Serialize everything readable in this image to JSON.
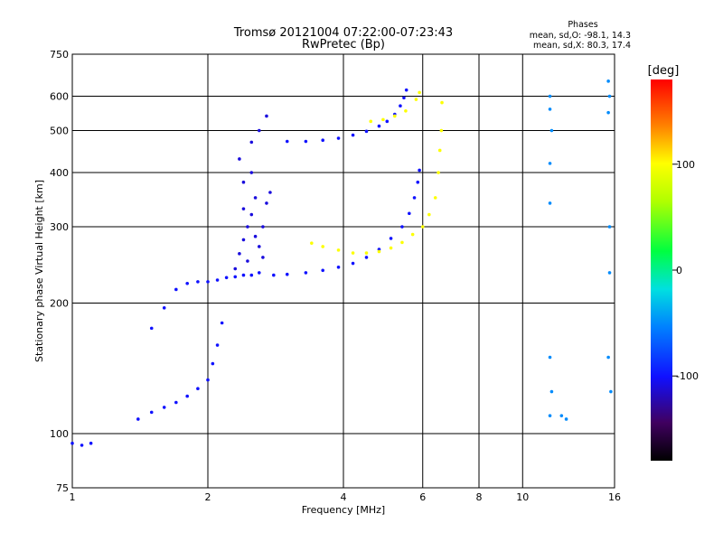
{
  "chart_data": {
    "type": "scatter",
    "title": "Tromsø 20121004 07:22:00-07:23:43",
    "subtitle": "RwPretec (Bp)",
    "xlabel": "Frequency [MHz]",
    "ylabel": "Stationary phase Virtual Height [km]",
    "x_scale": "log",
    "y_scale": "log",
    "xlim": [
      1,
      16
    ],
    "ylim": [
      75,
      750
    ],
    "x_ticks": [
      1,
      2,
      4,
      6,
      8,
      10,
      16
    ],
    "x_tick_labels": [
      "1",
      "2",
      "4",
      "6",
      "8",
      "10",
      "16"
    ],
    "y_ticks": [
      75,
      100,
      200,
      300,
      400,
      500,
      600,
      750
    ],
    "y_tick_labels": [
      "75",
      "100",
      "200",
      "300",
      "400",
      "500",
      "600",
      "750"
    ],
    "x_gridlines": [
      2,
      4,
      6,
      8,
      10
    ],
    "y_gridlines": [
      100,
      200,
      300,
      400,
      500,
      600
    ],
    "grid": true,
    "stats": {
      "heading": "Phases",
      "line1": "mean, sd,O: -98.1, 14.3",
      "line2": "mean, sd,X:  80.3, 17.4"
    },
    "colorbar": {
      "unit": "[deg]",
      "min": -180,
      "max": 180,
      "ticks": [
        100,
        0,
        -100
      ],
      "tick_labels": [
        "100",
        "0",
        "-100"
      ]
    },
    "traces": [
      {
        "name": "o-F-trace",
        "phase": -100,
        "points": [
          [
            2.6,
            235
          ],
          [
            2.8,
            232
          ],
          [
            3.0,
            233
          ],
          [
            3.3,
            235
          ],
          [
            3.6,
            238
          ],
          [
            3.9,
            242
          ],
          [
            4.2,
            247
          ],
          [
            4.5,
            255
          ],
          [
            4.8,
            266
          ],
          [
            5.1,
            282
          ],
          [
            5.4,
            300
          ],
          [
            5.6,
            322
          ],
          [
            5.75,
            350
          ],
          [
            5.85,
            380
          ],
          [
            5.9,
            405
          ]
        ]
      },
      {
        "name": "o-F2-trace",
        "phase": -100,
        "points": [
          [
            3.0,
            472
          ],
          [
            3.3,
            472
          ],
          [
            3.6,
            475
          ],
          [
            3.9,
            480
          ],
          [
            4.2,
            488
          ],
          [
            4.5,
            498
          ],
          [
            4.8,
            512
          ],
          [
            5.0,
            525
          ],
          [
            5.2,
            545
          ],
          [
            5.35,
            570
          ],
          [
            5.45,
            595
          ],
          [
            5.52,
            620
          ]
        ]
      },
      {
        "name": "x-F-trace",
        "phase": 100,
        "points": [
          [
            3.4,
            275
          ],
          [
            3.6,
            270
          ],
          [
            3.9,
            265
          ],
          [
            4.2,
            261
          ],
          [
            4.5,
            261
          ],
          [
            4.8,
            263
          ],
          [
            5.1,
            268
          ],
          [
            5.4,
            276
          ],
          [
            5.7,
            288
          ],
          [
            6.0,
            300
          ],
          [
            6.2,
            320
          ],
          [
            6.4,
            350
          ],
          [
            6.5,
            400
          ],
          [
            6.55,
            450
          ],
          [
            6.6,
            500
          ],
          [
            6.62,
            580
          ]
        ]
      },
      {
        "name": "x-F2-trace",
        "phase": 100,
        "points": [
          [
            4.6,
            525
          ],
          [
            4.9,
            530
          ],
          [
            5.2,
            540
          ],
          [
            5.5,
            555
          ],
          [
            5.8,
            590
          ],
          [
            5.9,
            612
          ]
        ]
      },
      {
        "name": "low-trace",
        "phase": -100,
        "points": [
          [
            1.0,
            95
          ],
          [
            1.05,
            94
          ],
          [
            1.1,
            95
          ],
          [
            1.4,
            108
          ],
          [
            1.5,
            112
          ],
          [
            1.6,
            115
          ],
          [
            1.7,
            118
          ],
          [
            1.8,
            122
          ],
          [
            1.9,
            127
          ],
          [
            2.0,
            133
          ],
          [
            2.05,
            145
          ],
          [
            2.1,
            160
          ],
          [
            2.15,
            180
          ]
        ]
      },
      {
        "name": "E-layer-trace",
        "phase": -100,
        "points": [
          [
            1.5,
            175
          ],
          [
            1.6,
            195
          ],
          [
            1.7,
            215
          ],
          [
            1.8,
            222
          ],
          [
            1.9,
            224
          ],
          [
            2.0,
            224
          ],
          [
            2.1,
            226
          ],
          [
            2.2,
            229
          ],
          [
            2.3,
            230
          ],
          [
            2.4,
            232
          ],
          [
            2.5,
            232
          ]
        ]
      },
      {
        "name": "spread-cluster",
        "phase": -110,
        "points": [
          [
            2.3,
            240
          ],
          [
            2.35,
            260
          ],
          [
            2.4,
            280
          ],
          [
            2.45,
            300
          ],
          [
            2.5,
            320
          ],
          [
            2.55,
            350
          ],
          [
            2.4,
            380
          ],
          [
            2.5,
            400
          ],
          [
            2.35,
            430
          ],
          [
            2.6,
            270
          ],
          [
            2.65,
            300
          ],
          [
            2.7,
            340
          ],
          [
            2.75,
            360
          ],
          [
            2.45,
            250
          ],
          [
            2.55,
            285
          ],
          [
            2.65,
            255
          ],
          [
            2.4,
            330
          ],
          [
            2.5,
            470
          ],
          [
            2.6,
            500
          ],
          [
            2.7,
            540
          ]
        ]
      },
      {
        "name": "right-edge-points",
        "phase": -50,
        "points": [
          [
            11.5,
            600
          ],
          [
            11.5,
            560
          ],
          [
            11.6,
            500
          ],
          [
            11.5,
            420
          ],
          [
            11.5,
            340
          ],
          [
            11.5,
            150
          ],
          [
            11.6,
            125
          ],
          [
            11.5,
            110
          ],
          [
            12.2,
            110
          ],
          [
            12.5,
            108
          ],
          [
            15.5,
            650
          ],
          [
            15.6,
            600
          ],
          [
            15.5,
            550
          ],
          [
            15.6,
            300
          ],
          [
            15.5,
            150
          ],
          [
            15.7,
            125
          ],
          [
            15.6,
            235
          ]
        ]
      }
    ]
  }
}
